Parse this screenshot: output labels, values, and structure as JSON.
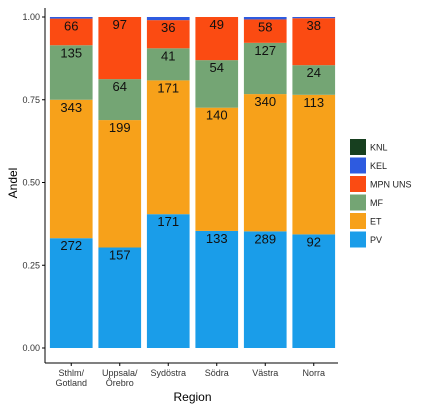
{
  "chart_data": {
    "type": "bar",
    "stacked": true,
    "normalized": true,
    "xlabel": "Region",
    "ylabel": "Andel",
    "ylim": [
      0,
      1
    ],
    "yticks": [
      "0.00",
      "0.25",
      "0.50",
      "0.75",
      "1.00"
    ],
    "yticks_values": [
      0,
      0.25,
      0.5,
      0.75,
      1.0
    ],
    "categories": [
      "Sthlm/\nGotland",
      "Uppsala/\nÖrebro",
      "Sydöstra",
      "Södra",
      "Västra",
      "Norra"
    ],
    "legend_position": "right",
    "legend_order": [
      "KNL",
      "KEL",
      "MPN UNS",
      "MF",
      "ET",
      "PV"
    ],
    "series": [
      {
        "name": "PV",
        "color": "#1a9de9",
        "values": [
          272,
          157,
          171,
          133,
          289,
          92
        ]
      },
      {
        "name": "ET",
        "color": "#f7a11a",
        "values": [
          343,
          199,
          171,
          140,
          340,
          113
        ]
      },
      {
        "name": "MF",
        "color": "#74a574",
        "values": [
          135,
          64,
          41,
          54,
          127,
          24
        ]
      },
      {
        "name": "MPN UNS",
        "color": "#fb4b12",
        "values": [
          66,
          97,
          36,
          49,
          58,
          38
        ]
      },
      {
        "name": "KEL",
        "color": "#2e5be0",
        "values": [
          4,
          0,
          4,
          0,
          6,
          1
        ]
      },
      {
        "name": "KNL",
        "color": "#173f1f",
        "values": [
          0,
          0,
          0,
          0,
          0,
          0
        ]
      }
    ]
  }
}
